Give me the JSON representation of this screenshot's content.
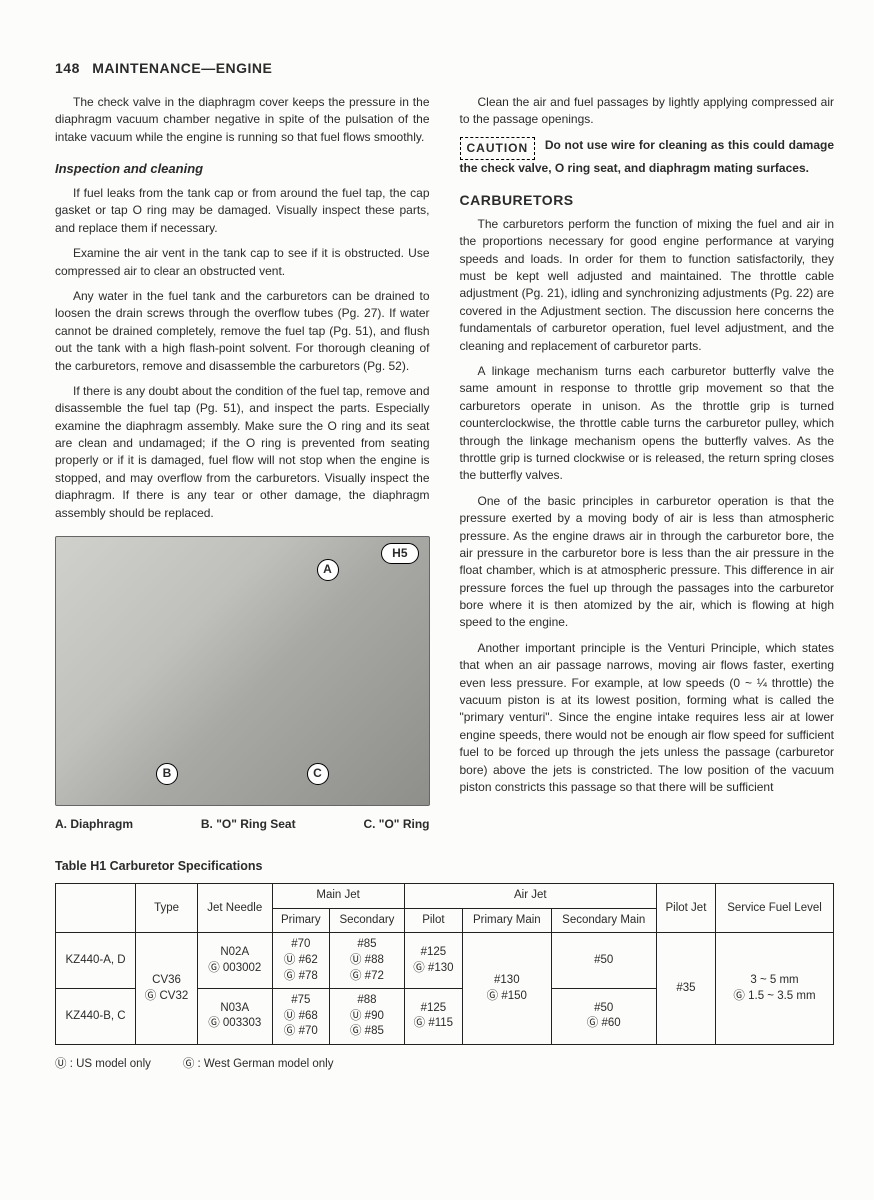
{
  "header": {
    "page_number": "148",
    "title": "MAINTENANCE—ENGINE"
  },
  "left_col": {
    "p1": "The check valve in the diaphragm cover keeps the pressure in the diaphragm vacuum chamber negative in spite of the pulsation of the intake vacuum while the engine is running so that fuel flows smoothly.",
    "subhead": "Inspection and cleaning",
    "p2": "If fuel leaks from the tank cap or from around the fuel tap, the cap gasket or tap O ring may be damaged. Visually inspect these parts, and replace them if necessary.",
    "p3": "Examine the air vent in the tank cap to see if it is obstructed. Use compressed air to clear an obstructed vent.",
    "p4": "Any water in the fuel tank and the carburetors can be drained to loosen the drain screws through the overflow tubes (Pg. 27). If water cannot be drained completely, remove the fuel tap (Pg. 51), and flush out the tank with a high flash-point solvent. For thorough cleaning of the carburetors, remove and disassemble the carburetors (Pg. 52).",
    "p5": "If there is any doubt about the condition of the fuel tap, remove and disassemble the fuel tap (Pg. 51), and inspect the parts. Especially examine the diaphragm assembly. Make sure the O ring and its seat are clean and undamaged; if the O ring is prevented from seating properly or if it is damaged, fuel flow will not stop when the engine is stopped, and may overflow from the carburetors. Visually inspect the diaphragm. If there is any tear or other damage, the diaphragm assembly should be replaced."
  },
  "figure": {
    "tag": "H5",
    "labels": {
      "A": "A",
      "B": "B",
      "C": "C"
    },
    "caption_a": "A. Diaphragm",
    "caption_b": "B. \"O\" Ring Seat",
    "caption_c": "C. \"O\" Ring"
  },
  "right_col": {
    "p1": "Clean the air and fuel passages by lightly applying compressed air to the passage openings.",
    "caution_tag": "CAUTION",
    "caution_text": "Do not use wire for cleaning as this could damage the check valve, O ring seat, and diaphragm mating surfaces.",
    "section_head": "CARBURETORS",
    "p2": "The carburetors perform the function of mixing the fuel and air in the proportions necessary for good engine performance at varying speeds and loads. In order for them to function satisfactorily, they must be kept well adjusted and maintained. The throttle cable adjustment (Pg. 21), idling and synchronizing adjustments (Pg. 22) are covered in the Adjustment section. The discussion here concerns the fundamentals of carburetor operation, fuel level adjustment, and the cleaning and replacement of carburetor parts.",
    "p3": "A linkage mechanism turns each carburetor butterfly valve the same amount in response to throttle grip movement so that the carburetors operate in unison. As the throttle grip is turned counterclockwise, the throttle cable turns the carburetor pulley, which through the linkage mechanism opens the butterfly valves. As the throttle grip is turned clockwise or is released, the return spring closes the butterfly valves.",
    "p4": "One of the basic principles in carburetor operation is that the pressure exerted by a moving body of air is less than atmospheric pressure. As the engine draws air in through the carburetor bore, the air pressure in the carburetor bore is less than the air pressure in the float chamber, which is at atmospheric pressure. This difference in air pressure forces the fuel up through the passages into the carburetor bore where it is then atomized by the air, which is flowing at high speed to the engine.",
    "p5": "Another important principle is the Venturi Principle, which states that when an air passage narrows, moving air flows faster, exerting even less pressure. For example, at low speeds (0 ~ ¼ throttle) the vacuum piston is at its lowest position, forming what is called the \"primary venturi\". Since the engine intake requires less air at lower engine speeds, there would not be enough air flow speed for sufficient fuel to be forced up through the jets unless the passage (carburetor bore) above the jets is constricted. The low position of the vacuum piston constricts this passage so that there will be sufficient"
  },
  "table": {
    "title": "Table H1    Carburetor Specifications",
    "headers": {
      "blank": "",
      "type": "Type",
      "jet_needle": "Jet Needle",
      "main_jet": "Main Jet",
      "main_primary": "Primary",
      "main_secondary": "Secondary",
      "air_jet": "Air Jet",
      "air_pilot": "Pilot",
      "air_primary_main": "Primary Main",
      "air_secondary_main": "Secondary Main",
      "pilot_jet": "Pilot Jet",
      "service_fuel": "Service Fuel Level"
    },
    "rows": [
      {
        "model": "KZ440-A, D",
        "type": "CV36\nⒼ CV32",
        "jet_needle": "N02A\nⒼ 003002",
        "main_primary": "#70\nⓊ #62\nⒼ #78",
        "main_secondary": "#85\nⓊ #88\nⒼ #72",
        "air_pilot": "#125\nⒼ #130",
        "air_primary_main": "#130\nⒼ #150",
        "air_secondary_main": "#50",
        "pilot_jet": "#35",
        "service_fuel": "3 ~ 5 mm\nⒼ 1.5 ~ 3.5 mm"
      },
      {
        "model": "KZ440-B, C",
        "jet_needle": "N03A\nⒼ 003303",
        "main_primary": "#75\nⓊ #68\nⒼ #70",
        "main_secondary": "#88\nⓊ #90\nⒼ #85",
        "air_pilot": "#125\nⒼ #115",
        "air_secondary_main": "#50\nⒼ #60"
      }
    ],
    "legend_u": "Ⓤ : US model only",
    "legend_g": "Ⓖ : West German model only"
  },
  "colors": {
    "text": "#2b2b2b",
    "bg": "#fcfcfb",
    "border": "#222222"
  }
}
